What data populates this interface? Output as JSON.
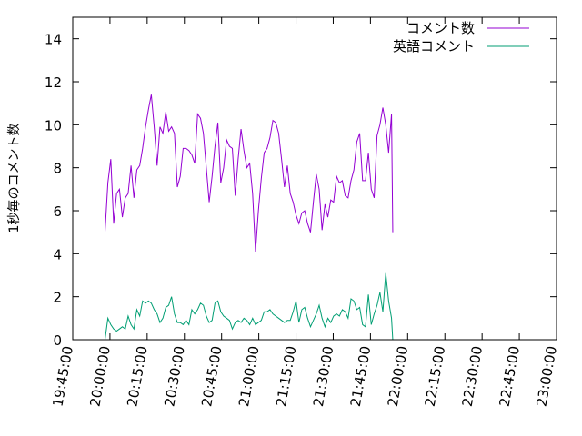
{
  "chart_data": {
    "type": "line",
    "ylabel": "1秒毎のコメント数",
    "xlabel": "",
    "title": "",
    "ylim": [
      0,
      15
    ],
    "xlim": [
      "19:45:00",
      "23:00:00"
    ],
    "y_ticks": [
      0,
      2,
      4,
      6,
      8,
      10,
      12,
      14
    ],
    "x_ticks": [
      "19:45:00",
      "20:00:00",
      "20:15:00",
      "20:30:00",
      "20:45:00",
      "21:00:00",
      "21:15:00",
      "21:30:00",
      "21:45:00",
      "22:00:00",
      "22:15:00",
      "22:30:00",
      "22:45:00",
      "23:00:00"
    ],
    "legend_position": "top-right",
    "grid": false,
    "series": [
      {
        "name": "コメント数",
        "color": "#9400d3",
        "points": [
          [
            "19:58:00",
            5.0
          ],
          [
            "19:59:10",
            7.3
          ],
          [
            "20:00:20",
            8.4
          ],
          [
            "20:01:30",
            5.4
          ],
          [
            "20:02:40",
            6.8
          ],
          [
            "20:03:50",
            7.0
          ],
          [
            "20:05:00",
            5.7
          ],
          [
            "20:06:10",
            6.6
          ],
          [
            "20:07:20",
            6.8
          ],
          [
            "20:08:30",
            8.1
          ],
          [
            "20:09:40",
            6.6
          ],
          [
            "20:10:50",
            7.9
          ],
          [
            "20:12:00",
            8.1
          ],
          [
            "20:13:10",
            8.9
          ],
          [
            "20:14:20",
            9.9
          ],
          [
            "20:15:30",
            10.7
          ],
          [
            "20:16:40",
            11.4
          ],
          [
            "20:17:50",
            9.9
          ],
          [
            "20:19:00",
            8.1
          ],
          [
            "20:20:10",
            9.9
          ],
          [
            "20:21:20",
            9.6
          ],
          [
            "20:22:30",
            10.6
          ],
          [
            "20:23:40",
            9.7
          ],
          [
            "20:24:50",
            9.9
          ],
          [
            "20:26:00",
            9.6
          ],
          [
            "20:27:10",
            7.1
          ],
          [
            "20:28:20",
            7.6
          ],
          [
            "20:29:30",
            8.9
          ],
          [
            "20:30:40",
            8.9
          ],
          [
            "20:31:50",
            8.8
          ],
          [
            "20:33:00",
            8.6
          ],
          [
            "20:34:10",
            8.2
          ],
          [
            "20:35:20",
            10.5
          ],
          [
            "20:36:30",
            10.3
          ],
          [
            "20:37:40",
            9.6
          ],
          [
            "20:38:50",
            8.0
          ],
          [
            "20:40:00",
            6.4
          ],
          [
            "20:41:10",
            7.6
          ],
          [
            "20:42:20",
            9.0
          ],
          [
            "20:43:30",
            10.1
          ],
          [
            "20:44:40",
            7.3
          ],
          [
            "20:45:50",
            8.0
          ],
          [
            "20:47:00",
            9.3
          ],
          [
            "20:48:10",
            9.0
          ],
          [
            "20:49:20",
            8.9
          ],
          [
            "20:50:30",
            6.7
          ],
          [
            "20:51:40",
            8.4
          ],
          [
            "20:52:50",
            9.8
          ],
          [
            "20:54:00",
            8.8
          ],
          [
            "20:55:10",
            8.0
          ],
          [
            "20:56:20",
            8.2
          ],
          [
            "20:57:30",
            6.8
          ],
          [
            "20:58:40",
            4.1
          ],
          [
            "20:59:50",
            6.0
          ],
          [
            "21:01:00",
            7.5
          ],
          [
            "21:02:10",
            8.7
          ],
          [
            "21:03:20",
            8.9
          ],
          [
            "21:04:30",
            9.4
          ],
          [
            "21:05:40",
            10.2
          ],
          [
            "21:06:50",
            10.1
          ],
          [
            "21:08:00",
            9.6
          ],
          [
            "21:09:10",
            8.4
          ],
          [
            "21:10:20",
            7.1
          ],
          [
            "21:11:30",
            8.1
          ],
          [
            "21:12:40",
            6.8
          ],
          [
            "21:13:50",
            6.4
          ],
          [
            "21:15:00",
            5.8
          ],
          [
            "21:16:10",
            5.4
          ],
          [
            "21:17:20",
            5.9
          ],
          [
            "21:18:30",
            6.0
          ],
          [
            "21:19:40",
            5.4
          ],
          [
            "21:20:50",
            5.0
          ],
          [
            "21:22:00",
            6.4
          ],
          [
            "21:23:10",
            7.7
          ],
          [
            "21:24:20",
            7.0
          ],
          [
            "21:25:30",
            5.1
          ],
          [
            "21:26:40",
            6.3
          ],
          [
            "21:27:50",
            5.7
          ],
          [
            "21:29:00",
            6.5
          ],
          [
            "21:30:10",
            6.4
          ],
          [
            "21:31:20",
            7.6
          ],
          [
            "21:32:30",
            7.3
          ],
          [
            "21:33:40",
            7.4
          ],
          [
            "21:34:50",
            6.7
          ],
          [
            "21:36:00",
            6.6
          ],
          [
            "21:37:10",
            7.4
          ],
          [
            "21:38:20",
            7.9
          ],
          [
            "21:39:30",
            9.2
          ],
          [
            "21:40:40",
            9.6
          ],
          [
            "21:41:50",
            7.4
          ],
          [
            "21:43:00",
            7.4
          ],
          [
            "21:44:10",
            8.7
          ],
          [
            "21:45:20",
            7.0
          ],
          [
            "21:46:30",
            6.6
          ],
          [
            "21:47:40",
            9.5
          ],
          [
            "21:48:50",
            10.0
          ],
          [
            "21:50:00",
            10.8
          ],
          [
            "21:51:10",
            10.0
          ],
          [
            "21:52:20",
            8.7
          ],
          [
            "21:53:30",
            10.5
          ],
          [
            "21:54:00",
            5.0
          ]
        ]
      },
      {
        "name": "英語コメント",
        "color": "#009e73",
        "points": [
          [
            "19:58:00",
            0.0
          ],
          [
            "19:59:10",
            1.0
          ],
          [
            "20:00:20",
            0.7
          ],
          [
            "20:01:30",
            0.5
          ],
          [
            "20:02:40",
            0.4
          ],
          [
            "20:03:50",
            0.5
          ],
          [
            "20:05:00",
            0.6
          ],
          [
            "20:06:10",
            0.5
          ],
          [
            "20:07:20",
            1.1
          ],
          [
            "20:08:30",
            0.7
          ],
          [
            "20:09:40",
            0.5
          ],
          [
            "20:10:50",
            1.4
          ],
          [
            "20:12:00",
            1.1
          ],
          [
            "20:13:10",
            1.8
          ],
          [
            "20:14:20",
            1.7
          ],
          [
            "20:15:30",
            1.8
          ],
          [
            "20:16:40",
            1.7
          ],
          [
            "20:17:50",
            1.4
          ],
          [
            "20:19:00",
            1.2
          ],
          [
            "20:20:10",
            0.8
          ],
          [
            "20:21:20",
            1.0
          ],
          [
            "20:22:30",
            1.5
          ],
          [
            "20:23:40",
            1.6
          ],
          [
            "20:24:50",
            2.0
          ],
          [
            "20:26:00",
            1.2
          ],
          [
            "20:27:10",
            0.8
          ],
          [
            "20:28:20",
            0.8
          ],
          [
            "20:29:30",
            0.7
          ],
          [
            "20:30:40",
            0.9
          ],
          [
            "20:31:50",
            0.7
          ],
          [
            "20:33:00",
            1.4
          ],
          [
            "20:34:10",
            1.2
          ],
          [
            "20:35:20",
            1.4
          ],
          [
            "20:36:30",
            1.7
          ],
          [
            "20:37:40",
            1.6
          ],
          [
            "20:38:50",
            1.1
          ],
          [
            "20:40:00",
            0.8
          ],
          [
            "20:41:10",
            0.9
          ],
          [
            "20:42:20",
            1.7
          ],
          [
            "20:43:30",
            1.8
          ],
          [
            "20:44:40",
            1.3
          ],
          [
            "20:45:50",
            1.1
          ],
          [
            "20:47:00",
            1.0
          ],
          [
            "20:48:10",
            0.9
          ],
          [
            "20:49:20",
            0.5
          ],
          [
            "20:50:30",
            0.8
          ],
          [
            "20:51:40",
            0.9
          ],
          [
            "20:52:50",
            0.8
          ],
          [
            "20:54:00",
            1.0
          ],
          [
            "20:55:10",
            0.9
          ],
          [
            "20:56:20",
            0.7
          ],
          [
            "20:57:30",
            1.0
          ],
          [
            "20:58:40",
            0.7
          ],
          [
            "20:59:50",
            0.8
          ],
          [
            "21:01:00",
            0.9
          ],
          [
            "21:02:10",
            1.3
          ],
          [
            "21:03:20",
            1.3
          ],
          [
            "21:04:30",
            1.4
          ],
          [
            "21:05:40",
            1.2
          ],
          [
            "21:06:50",
            1.1
          ],
          [
            "21:08:00",
            1.0
          ],
          [
            "21:09:10",
            0.9
          ],
          [
            "21:10:20",
            0.8
          ],
          [
            "21:11:30",
            0.9
          ],
          [
            "21:12:40",
            0.9
          ],
          [
            "21:13:50",
            1.3
          ],
          [
            "21:15:00",
            1.8
          ],
          [
            "21:16:10",
            0.8
          ],
          [
            "21:17:20",
            1.4
          ],
          [
            "21:18:30",
            1.5
          ],
          [
            "21:19:40",
            1.0
          ],
          [
            "21:20:50",
            0.6
          ],
          [
            "21:22:00",
            0.9
          ],
          [
            "21:23:10",
            1.2
          ],
          [
            "21:24:20",
            1.6
          ],
          [
            "21:25:30",
            1.0
          ],
          [
            "21:26:40",
            0.6
          ],
          [
            "21:27:50",
            1.0
          ],
          [
            "21:29:00",
            0.8
          ],
          [
            "21:30:10",
            1.1
          ],
          [
            "21:31:20",
            1.2
          ],
          [
            "21:32:30",
            1.1
          ],
          [
            "21:33:40",
            1.4
          ],
          [
            "21:34:50",
            1.3
          ],
          [
            "21:36:00",
            1.0
          ],
          [
            "21:37:10",
            1.9
          ],
          [
            "21:38:20",
            1.8
          ],
          [
            "21:39:30",
            1.4
          ],
          [
            "21:40:40",
            1.5
          ],
          [
            "21:41:50",
            0.7
          ],
          [
            "21:43:00",
            0.6
          ],
          [
            "21:44:10",
            2.1
          ],
          [
            "21:45:20",
            0.7
          ],
          [
            "21:46:30",
            1.2
          ],
          [
            "21:47:40",
            1.6
          ],
          [
            "21:48:50",
            2.2
          ],
          [
            "21:50:00",
            1.3
          ],
          [
            "21:51:10",
            3.1
          ],
          [
            "21:52:20",
            1.8
          ],
          [
            "21:53:30",
            1.0
          ],
          [
            "21:54:00",
            0.0
          ]
        ]
      }
    ]
  }
}
